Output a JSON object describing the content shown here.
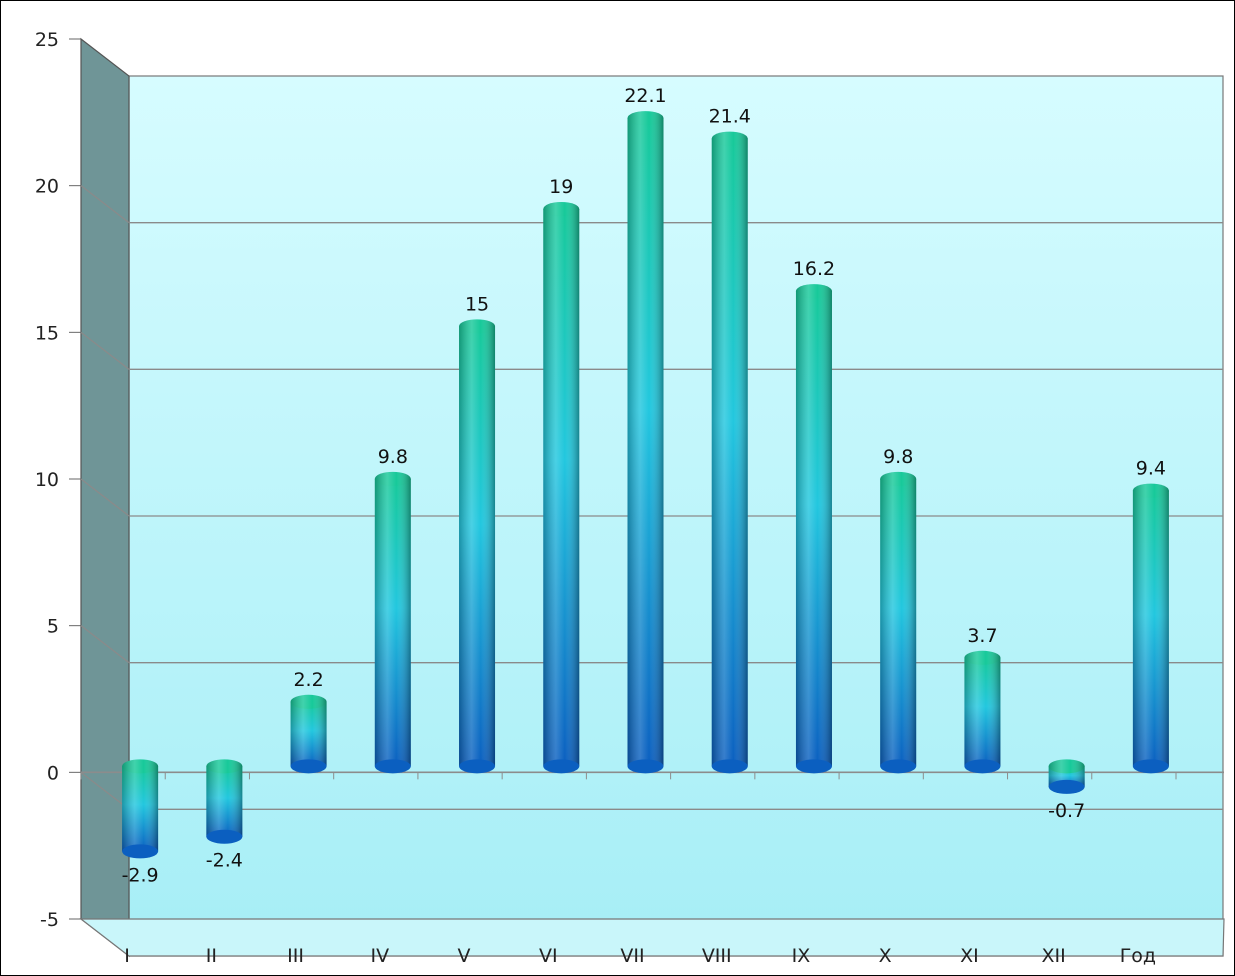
{
  "chart_data": {
    "type": "bar",
    "categories": [
      "I",
      "II",
      "III",
      "IV",
      "V",
      "VI",
      "VII",
      "VIII",
      "IX",
      "X",
      "XI",
      "XII",
      "Год"
    ],
    "values": [
      -2.9,
      -2.4,
      2.2,
      9.8,
      15,
      19,
      22.1,
      21.4,
      16.2,
      9.8,
      3.7,
      -0.7,
      9.4
    ],
    "data_labels": [
      "-2.9",
      "-2.4",
      "2.2",
      "9.8",
      "15",
      "19",
      "22.1",
      "21.4",
      "16.2",
      "9.8",
      "3.7",
      "-0.7",
      "9.4"
    ],
    "y_ticks": [
      "-5",
      "0",
      "5",
      "10",
      "15",
      "20",
      "25"
    ],
    "ylim": [
      -5,
      25
    ],
    "grid": true,
    "legend": "none",
    "title": "",
    "xlabel": "",
    "ylabel": "",
    "colors": {
      "back_wall_top": "#d6fcff",
      "back_wall_bottom": "#a6eef6",
      "side_wall": "#6f9597",
      "floor": "#c9f6fa",
      "bar_top": "#17c99a",
      "bar_mid": "#22c7df",
      "bar_bottom": "#0b5fc0",
      "gridline": "#8a8a8a"
    }
  }
}
